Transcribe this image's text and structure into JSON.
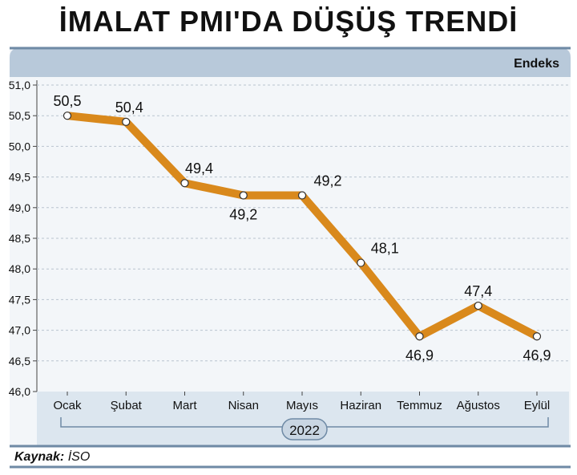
{
  "title": "İMALAT PMI'DA DÜŞÜŞ TRENDİ",
  "unit_label": "Endeks",
  "year_label": "2022",
  "source": {
    "label": "Kaynak:",
    "value": "İSO"
  },
  "colors": {
    "line": "#d9891c",
    "header_band": "#b8c9da",
    "panel_bg": "#f3f6f9",
    "axis_band": "#dce6ef",
    "frame": "#6f8aa5",
    "grid": "#b9c4cf"
  },
  "chart_data": {
    "type": "line",
    "categories": [
      "Ocak",
      "Şubat",
      "Mart",
      "Nisan",
      "Mayıs",
      "Haziran",
      "Temmuz",
      "Ağustos",
      "Eylül"
    ],
    "values": [
      50.5,
      50.4,
      49.4,
      49.2,
      49.2,
      48.1,
      46.9,
      47.4,
      46.9
    ],
    "value_labels": [
      "50,5",
      "50,4",
      "49,4",
      "49,2",
      "49,2",
      "48,1",
      "46,9",
      "47,4",
      "46,9"
    ],
    "yticks": [
      "46,0",
      "46,5",
      "47,0",
      "47,5",
      "48,0",
      "48,5",
      "49,0",
      "49,5",
      "50,0",
      "50,5",
      "51,0"
    ],
    "ylim": [
      46.0,
      51.0
    ],
    "ylabel": "Endeks",
    "xlabel": "2022",
    "grid": true
  }
}
